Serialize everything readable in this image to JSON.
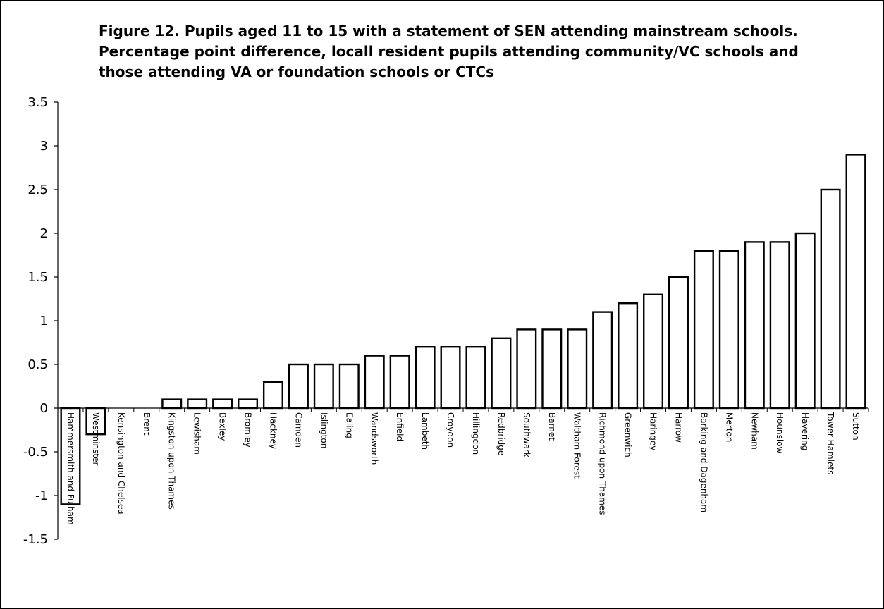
{
  "chart_data": {
    "type": "bar",
    "title": "Figure 12.  Pupils aged 11 to 15 with a statement of SEN attending mainstream schools. Percentage point difference, locall resident pupils attending community/VC schools and those attending VA or foundation schools or CTCs",
    "xlabel": "",
    "ylabel": "",
    "ylim": [
      -1.5,
      3.5
    ],
    "yticks": [
      -1.5,
      -1,
      -0.5,
      0,
      0.5,
      1,
      1.5,
      2,
      2.5,
      3,
      3.5
    ],
    "ytick_labels": [
      "-1.5",
      "-1",
      "-0.5",
      "0",
      "0.5",
      "1",
      "1.5",
      "2",
      "2.5",
      "3",
      "3.5"
    ],
    "grid": false,
    "legend": "none",
    "bar_fill": "#ffffff",
    "bar_stroke": "#000000",
    "categories": [
      "Hammersmith and Fulham",
      "Westminster",
      "Kensington and Chelsea",
      "Brent",
      "Kingston upon Thames",
      "Lewisham",
      "Bexley",
      "Bromley",
      "Hackney",
      "Camden",
      "Islington",
      "Ealing",
      "Wandsworth",
      "Enfield",
      "Lambeth",
      "Croydon",
      "Hillingdon",
      "Redbridge",
      "Southwark",
      "Barnet",
      "Waltham Forest",
      "Richmond upon Thames",
      "Greenwich",
      "Haringey",
      "Harrow",
      "Barking and Dagenham",
      "Merton",
      "Newham",
      "Hounslow",
      "Havering",
      "Tower Hamlets",
      "Sutton"
    ],
    "values": [
      -1.1,
      -0.3,
      0,
      0,
      0.1,
      0.1,
      0.1,
      0.1,
      0.3,
      0.5,
      0.5,
      0.5,
      0.6,
      0.6,
      0.7,
      0.7,
      0.7,
      0.8,
      0.9,
      0.9,
      0.9,
      1.1,
      1.2,
      1.3,
      1.5,
      1.8,
      1.8,
      1.9,
      1.9,
      2.0,
      2.5,
      2.9
    ]
  }
}
